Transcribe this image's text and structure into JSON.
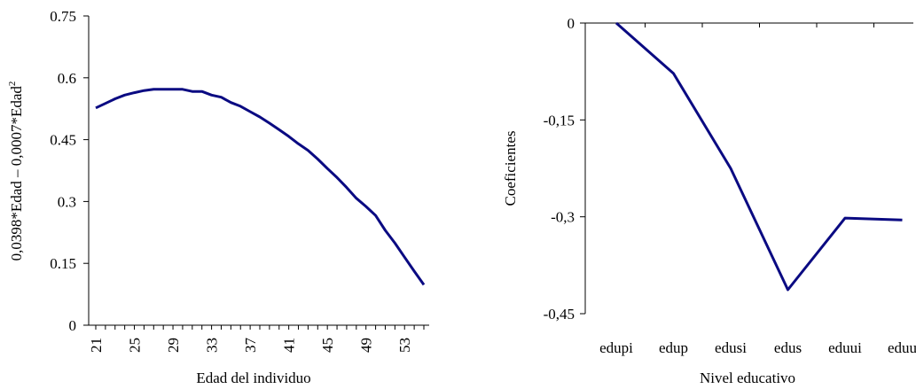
{
  "chart_data": [
    {
      "type": "line",
      "xlabel": "Edad del individuo",
      "ylabel_main": "0,0398*Edad – 0,0007*Edad",
      "ylabel_sup": "2",
      "xlim": [
        21,
        56
      ],
      "ylim": [
        0,
        0.75
      ],
      "y_ticks": [
        "0",
        "0.15",
        "0.3",
        "0.45",
        "0.6",
        "0.75"
      ],
      "y_tick_values": [
        0,
        0.15,
        0.3,
        0.45,
        0.6,
        0.75
      ],
      "x_tick_labels": [
        "21",
        "25",
        "29",
        "33",
        "37",
        "41",
        "45",
        "49",
        "53"
      ],
      "x_tick_values": [
        21,
        25,
        29,
        33,
        37,
        41,
        45,
        49,
        53
      ],
      "x_minor_ticks": [
        21,
        22,
        23,
        24,
        25,
        26,
        27,
        28,
        29,
        30,
        31,
        32,
        33,
        34,
        35,
        36,
        37,
        38,
        39,
        40,
        41,
        42,
        43,
        44,
        45,
        46,
        47,
        48,
        49,
        50,
        51,
        52,
        53,
        54,
        55,
        56
      ],
      "series": [
        {
          "x": [
            21,
            22,
            23,
            24,
            25,
            26,
            27,
            28,
            29,
            30,
            31,
            32,
            33,
            34,
            35,
            36,
            37,
            38,
            39,
            40,
            41,
            42,
            43,
            44,
            45,
            46,
            47,
            48,
            49,
            50,
            51,
            52,
            53,
            54,
            55
          ],
          "values": [
            0.527,
            0.538,
            0.549,
            0.558,
            0.564,
            0.569,
            0.572,
            0.572,
            0.572,
            0.572,
            0.567,
            0.567,
            0.558,
            0.553,
            0.54,
            0.531,
            0.518,
            0.505,
            0.49,
            0.474,
            0.458,
            0.44,
            0.424,
            0.403,
            0.38,
            0.358,
            0.334,
            0.308,
            0.288,
            0.266,
            0.23,
            0.199,
            0.165,
            0.131,
            0.098
          ]
        }
      ]
    },
    {
      "type": "line",
      "xlabel": "Nivel educativo",
      "ylabel": "Coeficientes",
      "ylim": [
        -0.45,
        0
      ],
      "y_ticks": [
        "-0,45",
        "-0,3",
        "-0,15",
        "0"
      ],
      "y_tick_values": [
        -0.45,
        -0.3,
        -0.15,
        0
      ],
      "categories": [
        "edupi",
        "edup",
        "edusi",
        "edus",
        "eduui",
        "eduu"
      ],
      "series": [
        {
          "values": [
            0,
            -0.078,
            -0.225,
            -0.413,
            -0.302,
            -0.305
          ]
        }
      ]
    }
  ]
}
